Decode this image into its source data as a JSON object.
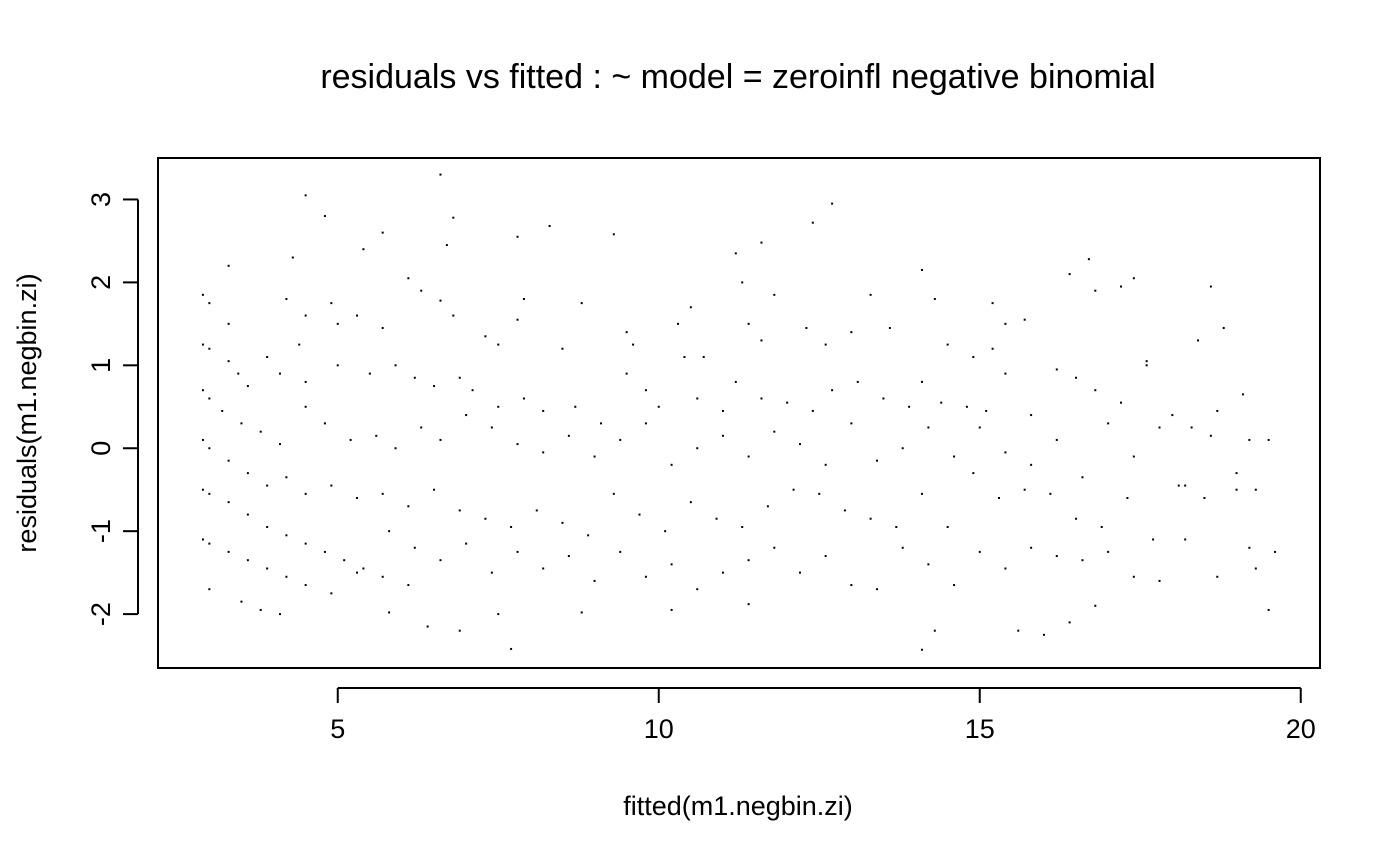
{
  "chart_data": {
    "type": "scatter",
    "title": "residuals vs fitted : ~ model = zeroinfl negative binomial",
    "xlabel": "fitted(m1.negbin.zi)",
    "ylabel": "residuals(m1.negbin.zi)",
    "xlim": [
      2.2,
      20.3
    ],
    "ylim": [
      -2.65,
      3.5
    ],
    "x_ticks": [
      5,
      10,
      15,
      20
    ],
    "y_ticks": [
      -2,
      -1,
      0,
      1,
      2,
      3
    ],
    "x_tick_labels": [
      "5",
      "10",
      "15",
      "20"
    ],
    "y_tick_labels": [
      "-2",
      "-1",
      "0",
      "1",
      "2",
      "3"
    ],
    "point_color": "#000000",
    "box": true,
    "grid": false,
    "curves_description": "many points lying along decreasing curves (one per observed count)",
    "points": [
      [
        3.3,
        2.2
      ],
      [
        4.5,
        3.05
      ],
      [
        4.8,
        2.8
      ],
      [
        6.6,
        3.3
      ],
      [
        6.8,
        2.78
      ],
      [
        5.7,
        2.6
      ],
      [
        5.4,
        2.4
      ],
      [
        4.3,
        2.3
      ],
      [
        6.7,
        2.45
      ],
      [
        7.8,
        2.55
      ],
      [
        8.3,
        2.68
      ],
      [
        9.3,
        2.58
      ],
      [
        11.6,
        2.48
      ],
      [
        12.4,
        2.72
      ],
      [
        12.7,
        2.95
      ],
      [
        16.7,
        2.28
      ],
      [
        19.1,
        0.65
      ],
      [
        2.9,
        1.85
      ],
      [
        3.0,
        1.75
      ],
      [
        3.3,
        1.5
      ],
      [
        4.2,
        1.8
      ],
      [
        4.5,
        1.6
      ],
      [
        4.9,
        1.75
      ],
      [
        5.0,
        1.5
      ],
      [
        5.3,
        1.6
      ],
      [
        5.7,
        1.45
      ],
      [
        6.1,
        2.05
      ],
      [
        6.3,
        1.9
      ],
      [
        6.6,
        1.78
      ],
      [
        6.8,
        1.6
      ],
      [
        7.3,
        1.35
      ],
      [
        7.5,
        1.25
      ],
      [
        7.8,
        1.55
      ],
      [
        7.9,
        1.8
      ],
      [
        8.5,
        1.2
      ],
      [
        8.8,
        1.75
      ],
      [
        9.5,
        1.4
      ],
      [
        9.6,
        1.25
      ],
      [
        10.3,
        1.5
      ],
      [
        10.5,
        1.7
      ],
      [
        10.7,
        1.1
      ],
      [
        11.2,
        2.35
      ],
      [
        11.3,
        2.0
      ],
      [
        11.4,
        1.5
      ],
      [
        11.6,
        1.3
      ],
      [
        11.8,
        1.85
      ],
      [
        12.3,
        1.45
      ],
      [
        12.6,
        1.25
      ],
      [
        13.0,
        1.4
      ],
      [
        13.3,
        1.85
      ],
      [
        13.6,
        1.45
      ],
      [
        14.1,
        2.15
      ],
      [
        14.3,
        1.8
      ],
      [
        14.5,
        1.25
      ],
      [
        14.9,
        1.1
      ],
      [
        15.2,
        1.75
      ],
      [
        15.4,
        1.5
      ],
      [
        15.7,
        1.55
      ],
      [
        16.4,
        2.1
      ],
      [
        16.8,
        1.9
      ],
      [
        17.2,
        1.95
      ],
      [
        17.4,
        2.05
      ],
      [
        17.6,
        1.05
      ],
      [
        18.4,
        1.3
      ],
      [
        18.6,
        1.95
      ],
      [
        18.8,
        1.45
      ],
      [
        15.2,
        1.2
      ],
      [
        2.9,
        1.25
      ],
      [
        3.0,
        1.2
      ],
      [
        3.3,
        1.05
      ],
      [
        3.45,
        0.9
      ],
      [
        3.6,
        0.75
      ],
      [
        3.9,
        1.1
      ],
      [
        4.1,
        0.9
      ],
      [
        4.4,
        1.25
      ],
      [
        4.5,
        0.8
      ],
      [
        5.0,
        1.0
      ],
      [
        5.5,
        0.9
      ],
      [
        5.9,
        1.0
      ],
      [
        6.2,
        0.85
      ],
      [
        6.5,
        0.75
      ],
      [
        6.9,
        0.85
      ],
      [
        7.1,
        0.7
      ],
      [
        7.5,
        0.5
      ],
      [
        7.9,
        0.6
      ],
      [
        8.2,
        0.45
      ],
      [
        8.7,
        0.5
      ],
      [
        9.1,
        0.3
      ],
      [
        9.5,
        0.9
      ],
      [
        9.8,
        0.7
      ],
      [
        10.0,
        0.5
      ],
      [
        10.4,
        1.1
      ],
      [
        10.6,
        0.6
      ],
      [
        11.0,
        0.45
      ],
      [
        11.2,
        0.8
      ],
      [
        11.6,
        0.6
      ],
      [
        12.0,
        0.55
      ],
      [
        12.4,
        0.45
      ],
      [
        12.7,
        0.7
      ],
      [
        13.1,
        0.8
      ],
      [
        13.5,
        0.6
      ],
      [
        13.9,
        0.5
      ],
      [
        14.1,
        0.8
      ],
      [
        14.4,
        0.55
      ],
      [
        14.8,
        0.5
      ],
      [
        15.1,
        0.45
      ],
      [
        15.4,
        0.9
      ],
      [
        15.8,
        0.4
      ],
      [
        16.2,
        0.95
      ],
      [
        16.5,
        0.85
      ],
      [
        16.8,
        0.7
      ],
      [
        17.2,
        0.55
      ],
      [
        17.6,
        1.0
      ],
      [
        18.0,
        0.4
      ],
      [
        18.3,
        0.25
      ],
      [
        18.7,
        0.45
      ],
      [
        19.2,
        0.1
      ],
      [
        19.5,
        0.1
      ],
      [
        2.9,
        0.7
      ],
      [
        3.0,
        0.6
      ],
      [
        3.2,
        0.45
      ],
      [
        3.5,
        0.3
      ],
      [
        3.8,
        0.2
      ],
      [
        4.1,
        0.05
      ],
      [
        4.5,
        0.5
      ],
      [
        4.8,
        0.3
      ],
      [
        5.2,
        0.1
      ],
      [
        5.6,
        0.15
      ],
      [
        5.9,
        0.0
      ],
      [
        6.3,
        0.25
      ],
      [
        6.6,
        0.1
      ],
      [
        7.0,
        0.4
      ],
      [
        7.4,
        0.25
      ],
      [
        7.8,
        0.05
      ],
      [
        8.2,
        -0.05
      ],
      [
        8.6,
        0.15
      ],
      [
        9.0,
        -0.1
      ],
      [
        9.4,
        0.1
      ],
      [
        9.8,
        0.3
      ],
      [
        10.2,
        -0.2
      ],
      [
        10.6,
        0.0
      ],
      [
        11.0,
        0.15
      ],
      [
        11.4,
        -0.1
      ],
      [
        11.8,
        0.2
      ],
      [
        12.2,
        0.05
      ],
      [
        12.6,
        -0.2
      ],
      [
        13.0,
        0.3
      ],
      [
        13.4,
        -0.15
      ],
      [
        13.8,
        0.0
      ],
      [
        14.2,
        0.25
      ],
      [
        14.6,
        -0.1
      ],
      [
        15.0,
        0.25
      ],
      [
        15.4,
        -0.05
      ],
      [
        15.8,
        -0.2
      ],
      [
        16.2,
        0.1
      ],
      [
        16.6,
        -0.35
      ],
      [
        17.0,
        0.3
      ],
      [
        17.4,
        -0.1
      ],
      [
        17.8,
        0.25
      ],
      [
        18.2,
        -0.45
      ],
      [
        18.6,
        0.15
      ],
      [
        19.0,
        -0.3
      ],
      [
        19.3,
        -0.5
      ],
      [
        2.9,
        0.1
      ],
      [
        3.0,
        0.0
      ],
      [
        3.3,
        -0.15
      ],
      [
        3.6,
        -0.3
      ],
      [
        3.9,
        -0.45
      ],
      [
        4.2,
        -0.35
      ],
      [
        4.5,
        -0.55
      ],
      [
        4.9,
        -0.45
      ],
      [
        5.3,
        -0.6
      ],
      [
        5.7,
        -0.55
      ],
      [
        6.1,
        -0.7
      ],
      [
        6.5,
        -0.5
      ],
      [
        6.9,
        -0.75
      ],
      [
        7.3,
        -0.85
      ],
      [
        7.7,
        -0.95
      ],
      [
        8.1,
        -0.75
      ],
      [
        8.5,
        -0.9
      ],
      [
        8.9,
        -1.05
      ],
      [
        9.3,
        -0.55
      ],
      [
        9.7,
        -0.8
      ],
      [
        10.1,
        -1.0
      ],
      [
        10.5,
        -0.65
      ],
      [
        10.9,
        -0.85
      ],
      [
        11.3,
        -0.95
      ],
      [
        11.7,
        -0.7
      ],
      [
        12.1,
        -0.5
      ],
      [
        12.5,
        -0.55
      ],
      [
        12.9,
        -0.75
      ],
      [
        13.3,
        -0.85
      ],
      [
        13.7,
        -0.95
      ],
      [
        14.1,
        -0.55
      ],
      [
        14.5,
        -0.95
      ],
      [
        14.9,
        -0.3
      ],
      [
        15.3,
        -0.6
      ],
      [
        15.7,
        -0.5
      ],
      [
        16.1,
        -0.55
      ],
      [
        16.5,
        -0.85
      ],
      [
        16.9,
        -0.95
      ],
      [
        17.3,
        -0.6
      ],
      [
        17.7,
        -1.1
      ],
      [
        18.1,
        -0.45
      ],
      [
        18.5,
        -0.6
      ],
      [
        19.0,
        -0.5
      ],
      [
        19.2,
        -1.2
      ],
      [
        2.9,
        -0.5
      ],
      [
        3.0,
        -0.55
      ],
      [
        3.3,
        -0.65
      ],
      [
        3.6,
        -0.8
      ],
      [
        3.9,
        -0.95
      ],
      [
        4.2,
        -1.05
      ],
      [
        4.5,
        -1.15
      ],
      [
        4.8,
        -1.25
      ],
      [
        5.1,
        -1.35
      ],
      [
        5.4,
        -1.45
      ],
      [
        5.8,
        -1.0
      ],
      [
        6.2,
        -1.2
      ],
      [
        6.6,
        -1.35
      ],
      [
        7.0,
        -1.15
      ],
      [
        7.4,
        -1.5
      ],
      [
        7.8,
        -1.25
      ],
      [
        8.2,
        -1.45
      ],
      [
        8.6,
        -1.3
      ],
      [
        9.0,
        -1.6
      ],
      [
        9.4,
        -1.25
      ],
      [
        9.8,
        -1.55
      ],
      [
        10.2,
        -1.4
      ],
      [
        10.6,
        -1.7
      ],
      [
        11.0,
        -1.5
      ],
      [
        11.4,
        -1.35
      ],
      [
        11.8,
        -1.2
      ],
      [
        12.2,
        -1.5
      ],
      [
        12.6,
        -1.3
      ],
      [
        13.0,
        -1.65
      ],
      [
        13.4,
        -1.7
      ],
      [
        13.8,
        -1.2
      ],
      [
        14.2,
        -1.4
      ],
      [
        14.6,
        -1.65
      ],
      [
        15.0,
        -1.25
      ],
      [
        15.4,
        -1.45
      ],
      [
        15.8,
        -1.2
      ],
      [
        16.2,
        -1.3
      ],
      [
        16.6,
        -1.35
      ],
      [
        17.0,
        -1.25
      ],
      [
        17.4,
        -1.55
      ],
      [
        17.8,
        -1.6
      ],
      [
        18.2,
        -1.1
      ],
      [
        18.7,
        -1.55
      ],
      [
        19.3,
        -1.45
      ],
      [
        19.6,
        -1.25
      ],
      [
        2.9,
        -1.1
      ],
      [
        3.0,
        -1.15
      ],
      [
        3.3,
        -1.25
      ],
      [
        3.6,
        -1.35
      ],
      [
        3.9,
        -1.45
      ],
      [
        4.2,
        -1.55
      ],
      [
        4.5,
        -1.65
      ],
      [
        4.9,
        -1.75
      ],
      [
        5.3,
        -1.5
      ],
      [
        5.7,
        -1.55
      ],
      [
        6.1,
        -1.65
      ],
      [
        3.0,
        -1.7
      ],
      [
        3.5,
        -1.85
      ],
      [
        3.8,
        -1.95
      ],
      [
        4.1,
        -2.0
      ],
      [
        5.8,
        -1.98
      ],
      [
        6.4,
        -2.15
      ],
      [
        6.9,
        -2.2
      ],
      [
        7.5,
        -2.0
      ],
      [
        7.7,
        -2.42
      ],
      [
        8.8,
        -1.98
      ],
      [
        10.2,
        -1.95
      ],
      [
        11.4,
        -1.88
      ],
      [
        14.1,
        -2.43
      ],
      [
        14.3,
        -2.2
      ],
      [
        15.6,
        -2.2
      ],
      [
        16.0,
        -2.25
      ],
      [
        16.4,
        -2.1
      ],
      [
        16.8,
        -1.9
      ],
      [
        19.5,
        -1.95
      ]
    ]
  }
}
